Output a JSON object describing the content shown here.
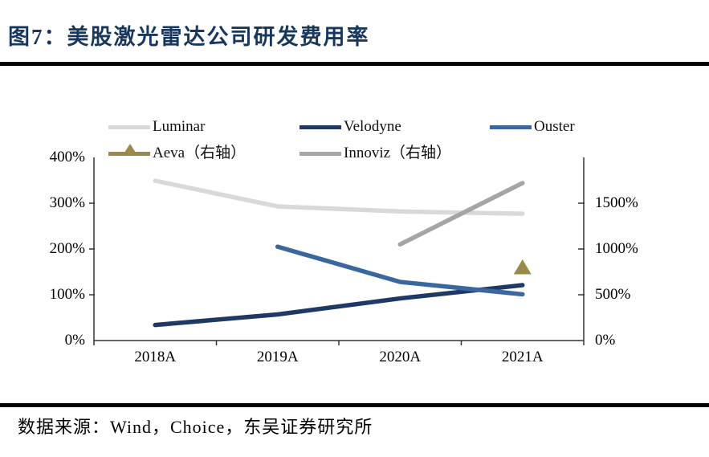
{
  "header": {
    "title": "图7：美股激光雷达公司研发费用率"
  },
  "footer": {
    "source": "数据来源：Wind，Choice，东吴证券研究所"
  },
  "chart_data": {
    "type": "line",
    "title": "美股激光雷达公司研发费用率",
    "categories": [
      "2018A",
      "2019A",
      "2020A",
      "2021A"
    ],
    "series": [
      {
        "name": "Luminar",
        "axis": "left",
        "color": "#d9d9d9",
        "marker": "none",
        "values": [
          349,
          293,
          282,
          277
        ]
      },
      {
        "name": "Velodyne",
        "axis": "left",
        "color": "#1f3864",
        "marker": "none",
        "values": [
          34,
          57,
          92,
          121
        ]
      },
      {
        "name": "Ouster",
        "axis": "left",
        "color": "#3a679f",
        "marker": "none",
        "values": [
          null,
          205,
          128,
          101
        ]
      },
      {
        "name": "Aeva（右轴）",
        "axis": "right",
        "color": "#998a49",
        "marker": "triangle",
        "values": [
          null,
          null,
          null,
          790
        ]
      },
      {
        "name": "Innoviz（右轴）",
        "axis": "right",
        "color": "#a5a5a5",
        "marker": "none",
        "values": [
          null,
          null,
          1050,
          1720
        ]
      }
    ],
    "left_axis": {
      "min": 0,
      "max": 400,
      "tick_labels": [
        "0%",
        "100%",
        "200%",
        "300%",
        "400%"
      ]
    },
    "right_axis": {
      "min": 0,
      "max": 2000,
      "tick_labels": [
        "0%",
        "500%",
        "1000%",
        "1500%"
      ]
    },
    "grid": false,
    "legend_position": "top"
  }
}
